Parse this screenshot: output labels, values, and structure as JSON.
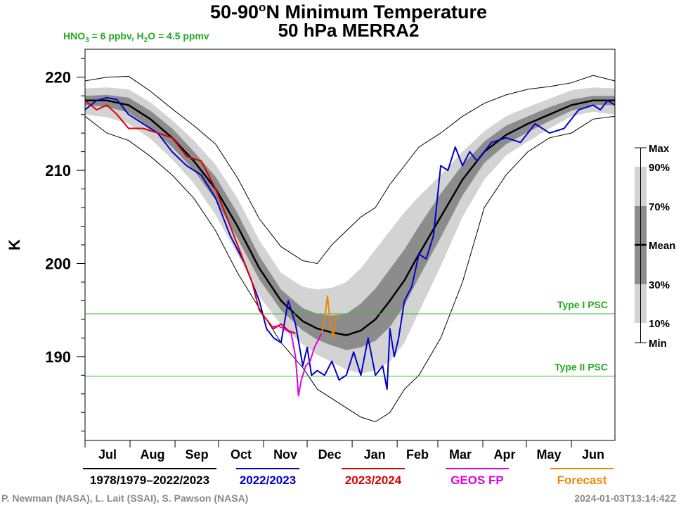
{
  "chart_data": {
    "type": "line",
    "title": "50-90°N Minimum Temperature",
    "title_superscript": "o",
    "subtitle": "50 hPa   MERRA2",
    "annotation": {
      "hno3_prefix": "HNO",
      "hno3_sub": "3",
      "hno3_value": " = 6 ppbv, H",
      "h2o_sub": "2",
      "h2o_value": "O = 4.5 ppmv"
    },
    "ylabel": "K",
    "ylim": [
      181,
      223
    ],
    "yticks": [
      190,
      200,
      210,
      220
    ],
    "xlim": [
      0,
      365
    ],
    "months": [
      "Jul",
      "Aug",
      "Sep",
      "Oct",
      "Nov",
      "Dec",
      "Jan",
      "Feb",
      "Mar",
      "Apr",
      "May",
      "Jun"
    ],
    "month_starts": [
      0,
      31,
      62,
      92,
      123,
      153,
      184,
      215,
      243,
      274,
      304,
      335
    ],
    "thresholds": [
      {
        "name": "Type I PSC",
        "value": 194.6,
        "color": "#33bb33"
      },
      {
        "name": "Type II PSC",
        "value": 187.9,
        "color": "#33bb33"
      }
    ],
    "climatology": {
      "name": "1978/1979–2022/2023",
      "days": [
        0,
        15,
        30,
        45,
        60,
        75,
        90,
        105,
        120,
        135,
        150,
        160,
        170,
        180,
        190,
        200,
        210,
        220,
        230,
        245,
        260,
        275,
        290,
        305,
        320,
        335,
        350,
        365
      ],
      "mean": [
        217.5,
        217.5,
        217.0,
        215.5,
        213.5,
        211.0,
        208.0,
        204.0,
        199.5,
        196.0,
        193.8,
        193.0,
        192.6,
        192.3,
        192.8,
        194.0,
        196.0,
        198.2,
        201.0,
        205.0,
        209.0,
        212.0,
        213.8,
        215.0,
        216.0,
        217.0,
        217.5,
        217.5
      ],
      "p30": [
        217.0,
        216.8,
        216.2,
        214.6,
        212.5,
        210.0,
        206.8,
        202.7,
        198.3,
        195.0,
        192.8,
        191.8,
        191.2,
        190.7,
        191.0,
        191.7,
        193.2,
        195.5,
        198.5,
        202.8,
        207.3,
        210.8,
        212.8,
        214.1,
        215.3,
        216.4,
        217.0,
        217.0
      ],
      "p70": [
        218.0,
        218.1,
        217.8,
        216.4,
        214.5,
        212.0,
        209.3,
        205.4,
        200.8,
        197.2,
        195.2,
        194.6,
        194.4,
        194.6,
        195.7,
        197.3,
        199.4,
        201.5,
        204.0,
        207.5,
        210.6,
        213.1,
        214.8,
        215.8,
        216.8,
        217.6,
        218.0,
        218.0
      ],
      "p10": [
        216.0,
        215.7,
        215.0,
        213.4,
        211.2,
        208.6,
        205.2,
        201.0,
        196.5,
        193.4,
        191.3,
        190.2,
        189.4,
        188.6,
        188.2,
        188.5,
        189.5,
        191.5,
        194.8,
        199.7,
        205.0,
        209.0,
        211.6,
        213.1,
        214.5,
        215.8,
        216.3,
        216.0
      ],
      "p90": [
        218.8,
        218.9,
        218.7,
        217.3,
        215.4,
        213.2,
        210.6,
        207.0,
        202.5,
        199.0,
        197.5,
        197.2,
        197.4,
        198.0,
        199.5,
        201.5,
        203.5,
        205.5,
        207.2,
        209.5,
        212.0,
        214.2,
        215.8,
        216.8,
        217.7,
        218.6,
        218.9,
        218.8
      ],
      "min": [
        215.8,
        214.0,
        213.2,
        211.5,
        209.5,
        207.0,
        203.5,
        199.0,
        195.2,
        191.5,
        188.8,
        186.5,
        185.5,
        184.5,
        183.5,
        183.0,
        184.0,
        186.5,
        188.0,
        192.0,
        198.0,
        206.0,
        209.5,
        212.0,
        213.5,
        214.0,
        215.5,
        215.8
      ],
      "max": [
        219.6,
        220.0,
        220.1,
        218.5,
        216.6,
        214.8,
        212.8,
        209.2,
        204.8,
        201.8,
        200.3,
        200.0,
        202.0,
        203.5,
        205.0,
        206.0,
        208.5,
        210.5,
        212.5,
        214.0,
        215.8,
        217.2,
        218.1,
        218.7,
        219.0,
        219.4,
        220.2,
        219.6
      ]
    },
    "series": [
      {
        "name": "2022/2023",
        "color": "#0000cc",
        "days": [
          0,
          8,
          15,
          22,
          30,
          40,
          50,
          60,
          70,
          80,
          90,
          100,
          110,
          120,
          125,
          130,
          135,
          140,
          145,
          150,
          153,
          156,
          160,
          165,
          170,
          175,
          180,
          185,
          190,
          195,
          200,
          205,
          208,
          210,
          213,
          216,
          220,
          225,
          230,
          235,
          240,
          245,
          250,
          255,
          260,
          265,
          270,
          280,
          290,
          300,
          310,
          320,
          330,
          340,
          350,
          355,
          360,
          365
        ],
        "values": [
          216.5,
          217.5,
          217.8,
          217.6,
          216.0,
          215.0,
          214.0,
          212.0,
          210.5,
          209.5,
          207.0,
          203.0,
          200.0,
          196.0,
          193.0,
          192.0,
          191.5,
          196.0,
          193.5,
          189.0,
          191.0,
          188.0,
          188.5,
          188.0,
          189.5,
          187.5,
          188.0,
          190.5,
          188.0,
          192.0,
          188.0,
          189.0,
          186.5,
          193.0,
          190.0,
          192.0,
          196.0,
          197.5,
          201.0,
          200.5,
          203.0,
          210.5,
          210.0,
          212.5,
          210.5,
          212.0,
          211.0,
          213.0,
          213.5,
          213.0,
          215.0,
          214.0,
          214.5,
          216.5,
          217.0,
          216.5,
          217.5,
          217.0
        ]
      },
      {
        "name": "2023/2024",
        "color": "#dd0000",
        "days": [
          0,
          8,
          15,
          22,
          30,
          40,
          50,
          60,
          70,
          80,
          90,
          95,
          100,
          110,
          115,
          120,
          125,
          130,
          135,
          140,
          145
        ],
        "values": [
          217.5,
          216.5,
          217.0,
          216.0,
          214.5,
          214.5,
          214.0,
          213.5,
          211.5,
          211.0,
          208.0,
          206.0,
          204.0,
          200.0,
          198.0,
          195.0,
          194.0,
          193.0,
          193.5,
          192.8,
          192.5
        ]
      },
      {
        "name": "GEOS FP",
        "color": "#e000e0",
        "days": [
          128,
          133,
          137,
          142,
          145,
          147,
          149,
          152,
          155,
          158,
          163
        ],
        "values": [
          193.2,
          193.3,
          193.0,
          192.5,
          190.0,
          185.8,
          187.5,
          189.0,
          189.5,
          191.0,
          192.5
        ]
      },
      {
        "name": "Forecast",
        "color": "#ee8800",
        "days": [
          163,
          165,
          167,
          169,
          171,
          173
        ],
        "values": [
          192.5,
          194.0,
          196.5,
          193.5,
          192.0,
          194.5
        ]
      }
    ],
    "side_legend": {
      "labels": [
        "Max",
        "90%",
        "70%",
        "Mean",
        "30%",
        "10%",
        "Min"
      ]
    }
  },
  "footer": {
    "credits": "P. Newman (NASA), L. Lait (SSAI), S. Pawson (NASA)",
    "timestamp": "2024-01-03T13:14:42Z"
  },
  "colors": {
    "band_outer": "#d3d3d3",
    "band_inner": "#8c8c8c",
    "climatology_line": "#000000"
  }
}
